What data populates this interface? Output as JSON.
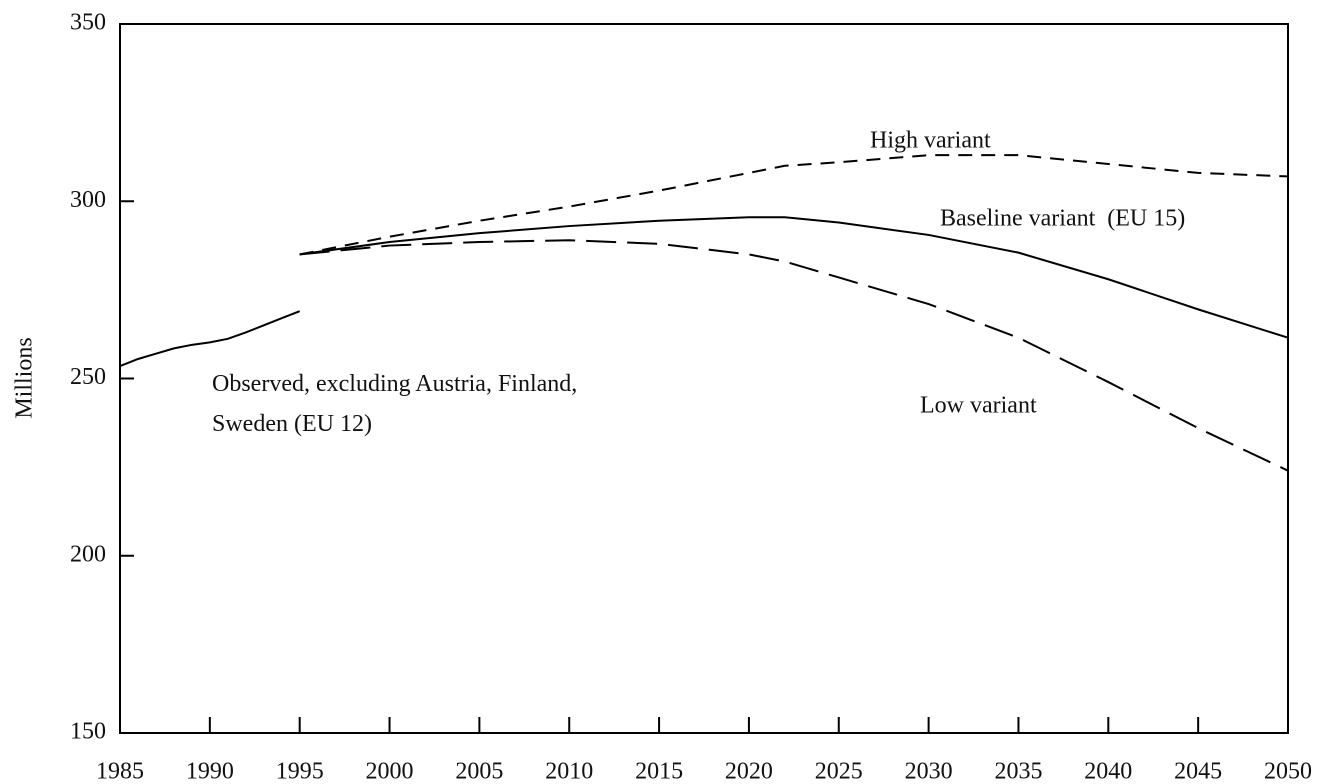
{
  "chart_data": {
    "type": "line",
    "ylabel": "Millions",
    "xlim": [
      1985,
      2050
    ],
    "xticks": [
      1985,
      1990,
      1995,
      2000,
      2005,
      2010,
      2015,
      2020,
      2025,
      2030,
      2035,
      2040,
      2045,
      2050
    ],
    "ylim": [
      150,
      350
    ],
    "yticks": [
      150,
      200,
      250,
      300,
      350
    ],
    "grid": false,
    "series": [
      {
        "name": "Observed, excluding Austria, Finland, Sweden (EU 12)",
        "color": "#000000",
        "line_style": "solid",
        "x": [
          1985,
          1986,
          1987,
          1988,
          1989,
          1990,
          1991,
          1992,
          1993,
          1994,
          1995
        ],
        "values": [
          253.5,
          255.5,
          257,
          258.5,
          259.5,
          260.2,
          261.2,
          263,
          265,
          267,
          269
        ]
      },
      {
        "name": "High variant",
        "color": "#000000",
        "line_style": "dashed",
        "x": [
          1995,
          2000,
          2005,
          2010,
          2015,
          2020,
          2022,
          2025,
          2030,
          2035,
          2040,
          2045,
          2050
        ],
        "values": [
          285,
          290,
          294.5,
          298.5,
          303,
          308,
          310,
          311,
          313,
          313,
          310.5,
          308,
          307
        ]
      },
      {
        "name": "Baseline variant  (EU 15)",
        "color": "#000000",
        "line_style": "solid",
        "x": [
          1995,
          2000,
          2005,
          2010,
          2015,
          2020,
          2022,
          2025,
          2030,
          2035,
          2040,
          2045,
          2050
        ],
        "values": [
          285,
          288.5,
          291,
          293,
          294.5,
          295.5,
          295.5,
          294,
          290.5,
          285.5,
          278,
          269.5,
          261.5
        ]
      },
      {
        "name": "Low variant",
        "color": "#000000",
        "line_style": "long-dashed",
        "x": [
          1995,
          2000,
          2005,
          2010,
          2015,
          2020,
          2022,
          2025,
          2030,
          2035,
          2040,
          2045,
          2050
        ],
        "values": [
          285,
          287.5,
          288.5,
          289,
          288,
          285,
          283,
          278.5,
          271,
          261.5,
          249,
          236,
          224
        ]
      }
    ]
  }
}
